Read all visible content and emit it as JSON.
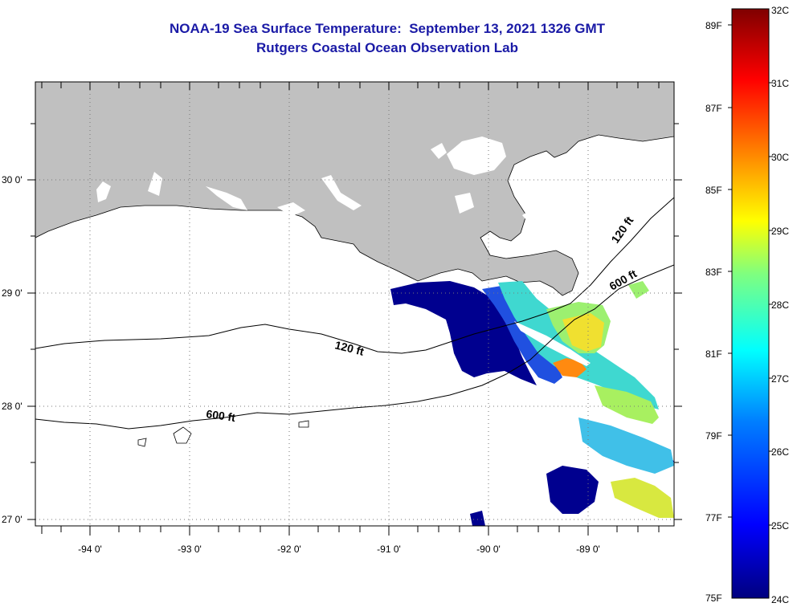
{
  "title_line1": "NOAA-19 Sea Surface Temperature:  September 13, 2021 1326 GMT",
  "title_line2": "Rutgers Coastal Ocean Observation Lab",
  "map": {
    "lat_labels": [
      "30 0'",
      "29 0'",
      "28 0'",
      "27 0'"
    ],
    "lon_labels": [
      "-94 0'",
      "-93 0'",
      "-92 0'",
      "-91 0'",
      "-90 0'",
      "-89 0'"
    ],
    "contour_labels": [
      "120 ft",
      "120 ft",
      "600 ft",
      "600 ft"
    ],
    "land_color": "#c0c0c0",
    "cloud_color": "#ffffff"
  },
  "colorbar": {
    "celsius": [
      "32C",
      "31C",
      "30C",
      "29C",
      "28C",
      "27C",
      "26C",
      "25C",
      "24C"
    ],
    "fahrenheit": [
      "89F",
      "87F",
      "85F",
      "83F",
      "81F",
      "79F",
      "77F",
      "75F"
    ],
    "colors": [
      "#00007f",
      "#0000ff",
      "#007fff",
      "#00ffff",
      "#7fff7f",
      "#ffff00",
      "#ff7f00",
      "#ff0000",
      "#7f0000"
    ]
  }
}
